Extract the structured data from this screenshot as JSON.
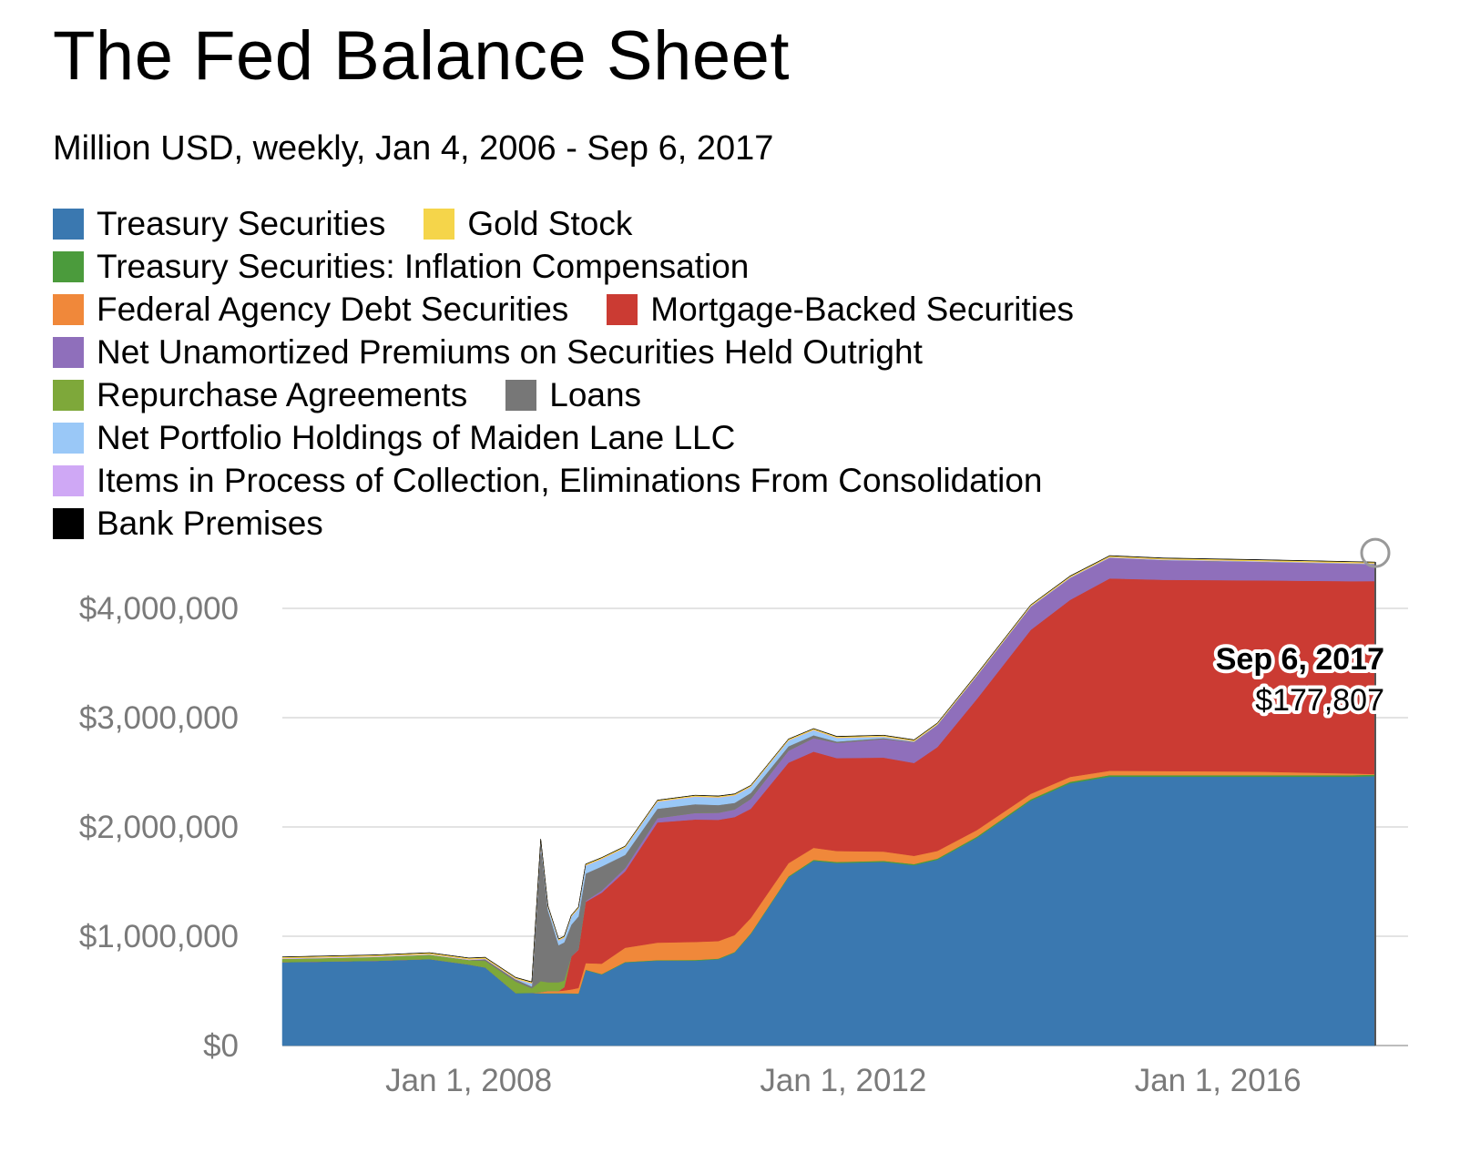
{
  "title": "The Fed Balance Sheet",
  "subtitle": "Million USD, weekly, Jan 4, 2006 - Sep 6, 2017",
  "legend_rows": [
    [
      {
        "label": "Treasury Securities",
        "color": "#3a78b0"
      },
      {
        "label": "Gold Stock",
        "color": "#f5d54a"
      }
    ],
    [
      {
        "label": "Treasury Securities: Inflation Compensation",
        "color": "#4b9b3c"
      }
    ],
    [
      {
        "label": "Federal Agency Debt Securities",
        "color": "#f0883a"
      },
      {
        "label": "Mortgage-Backed Securities",
        "color": "#cb3b33"
      }
    ],
    [
      {
        "label": "Net Unamortized Premiums on Securities Held Outright",
        "color": "#8f6fbb"
      }
    ],
    [
      {
        "label": "Repurchase Agreements",
        "color": "#7ea83a"
      },
      {
        "label": "Loans",
        "color": "#777777"
      }
    ],
    [
      {
        "label": "Net Portfolio Holdings of Maiden Lane LLC",
        "color": "#9ac8f7"
      }
    ],
    [
      {
        "label": "Items in Process of Collection, Eliminations From Consolidation",
        "color": "#cfa8f5"
      }
    ],
    [
      {
        "label": "Bank Premises",
        "color": "#000000"
      }
    ]
  ],
  "tooltip": {
    "date": "Sep 6, 2017",
    "value": "$177,807"
  },
  "chart_data": {
    "type": "area",
    "stacked": true,
    "x_start": "2006-01-04",
    "x_end": "2017-09-06",
    "x_ticks": [
      {
        "date": "2008-01-01",
        "label": "Jan 1, 2008"
      },
      {
        "date": "2012-01-01",
        "label": "Jan 1, 2012"
      },
      {
        "date": "2016-01-01",
        "label": "Jan 1, 2016"
      }
    ],
    "y_ticks": [
      {
        "value": 0,
        "label": "$0"
      },
      {
        "value": 1000000,
        "label": "$1,000,000"
      },
      {
        "value": 2000000,
        "label": "$2,000,000"
      },
      {
        "value": 3000000,
        "label": "$3,000,000"
      },
      {
        "value": 4000000,
        "label": "$4,000,000"
      }
    ],
    "ylim": [
      0,
      4400000
    ],
    "grid": true,
    "x": [
      "2006-01-04",
      "2007-01-03",
      "2007-08-01",
      "2008-01-02",
      "2008-03-05",
      "2008-07-02",
      "2008-09-03",
      "2008-10-08",
      "2008-11-05",
      "2008-12-17",
      "2009-01-07",
      "2009-02-04",
      "2009-03-04",
      "2009-04-01",
      "2009-06-03",
      "2009-09-02",
      "2010-01-06",
      "2010-06-02",
      "2010-09-01",
      "2010-11-03",
      "2011-01-05",
      "2011-06-01",
      "2011-09-07",
      "2011-12-07",
      "2012-06-06",
      "2012-10-03",
      "2013-01-02",
      "2013-06-05",
      "2014-01-01",
      "2014-06-04",
      "2014-11-05",
      "2015-06-03",
      "2016-06-01",
      "2017-06-07",
      "2017-09-06"
    ],
    "series": [
      {
        "name": "Treasury Securities",
        "color": "#3a78b0",
        "values": [
          762000,
          775000,
          790000,
          740000,
          713000,
          478000,
          480000,
          476000,
          476000,
          476000,
          476000,
          475000,
          474000,
          690000,
          650000,
          760000,
          777000,
          777000,
          790000,
          850000,
          1020000,
          1540000,
          1690000,
          1670000,
          1680000,
          1650000,
          1700000,
          1900000,
          2240000,
          2400000,
          2460000,
          2460000,
          2460000,
          2460000,
          2465000
        ]
      },
      {
        "name": "Treasury Securities: Inflation Compensation",
        "color": "#4b9b3c",
        "values": [
          1000,
          1000,
          2000,
          2000,
          2000,
          3000,
          3000,
          3000,
          3000,
          3000,
          3000,
          3000,
          3000,
          4000,
          4000,
          5000,
          5000,
          6000,
          6000,
          6000,
          7000,
          8000,
          9000,
          10000,
          10000,
          11000,
          11000,
          12000,
          13000,
          13000,
          14000,
          14000,
          14000,
          14000,
          14000
        ]
      },
      {
        "name": "Federal Agency Debt Securities",
        "color": "#f0883a",
        "values": [
          0,
          0,
          0,
          0,
          0,
          0,
          0,
          10000,
          20000,
          20000,
          25000,
          35000,
          50000,
          60000,
          95000,
          130000,
          160000,
          165000,
          160000,
          155000,
          140000,
          120000,
          110000,
          100000,
          85000,
          75000,
          70000,
          60000,
          50000,
          45000,
          40000,
          38000,
          33000,
          15000,
          5000
        ]
      },
      {
        "name": "Mortgage-Backed Securities",
        "color": "#cb3b33",
        "values": [
          0,
          0,
          0,
          0,
          0,
          0,
          0,
          0,
          0,
          0,
          30000,
          300000,
          350000,
          560000,
          650000,
          700000,
          1100000,
          1120000,
          1110000,
          1080000,
          1000000,
          920000,
          880000,
          850000,
          860000,
          850000,
          950000,
          1200000,
          1500000,
          1620000,
          1760000,
          1750000,
          1750000,
          1760000,
          1766000
        ]
      },
      {
        "name": "Net Unamortized Premiums on Securities Held Outright",
        "color": "#8f6fbb",
        "values": [
          0,
          0,
          0,
          0,
          0,
          0,
          0,
          0,
          0,
          0,
          0,
          2000,
          5000,
          10000,
          20000,
          30000,
          40000,
          60000,
          65000,
          70000,
          90000,
          110000,
          125000,
          140000,
          170000,
          190000,
          200000,
          210000,
          210000,
          200000,
          190000,
          180000,
          170000,
          160000,
          155000
        ]
      },
      {
        "name": "Repurchase Agreements",
        "color": "#7ea83a",
        "values": [
          30000,
          35000,
          40000,
          40000,
          60000,
          105000,
          40000,
          100000,
          80000,
          80000,
          60000,
          0,
          0,
          0,
          0,
          0,
          0,
          0,
          0,
          0,
          0,
          0,
          0,
          0,
          0,
          0,
          0,
          0,
          0,
          0,
          0,
          0,
          0,
          0,
          0
        ]
      },
      {
        "name": "Loans",
        "color": "#777777",
        "values": [
          0,
          0,
          0,
          2000,
          15000,
          20000,
          18000,
          1260000,
          660000,
          340000,
          350000,
          290000,
          300000,
          250000,
          220000,
          120000,
          85000,
          80000,
          70000,
          60000,
          55000,
          40000,
          25000,
          12000,
          8000,
          3000,
          2000,
          1000,
          1000,
          500,
          300,
          500,
          500,
          500,
          500
        ]
      },
      {
        "name": "Net Portfolio Holdings of Maiden Lane LLC",
        "color": "#9ac8f7",
        "values": [
          0,
          0,
          0,
          0,
          0,
          0,
          25000,
          25000,
          25000,
          40000,
          40000,
          70000,
          70000,
          70000,
          65000,
          63000,
          62000,
          66000,
          66000,
          65000,
          52000,
          50000,
          45000,
          30000,
          10000,
          2000,
          2000,
          1500,
          1700,
          1700,
          1700,
          1800,
          1800,
          1800,
          1800
        ]
      },
      {
        "name": "Items in Process of Collection, Eliminations From Consolidation",
        "color": "#cfa8f5",
        "values": [
          6000,
          6000,
          5000,
          5000,
          5000,
          5000,
          4000,
          4000,
          4000,
          4000,
          4000,
          4000,
          4000,
          4000,
          4000,
          4000,
          4000,
          4000,
          4000,
          4000,
          4000,
          4000,
          4000,
          4000,
          4000,
          4000,
          4000,
          4000,
          4000,
          4000,
          4000,
          4000,
          4000,
          4000,
          4000
        ]
      },
      {
        "name": "Gold Stock",
        "color": "#f5d54a",
        "values": [
          11000,
          11000,
          11000,
          11000,
          11000,
          11000,
          11000,
          11000,
          11000,
          11000,
          11000,
          11000,
          11000,
          11000,
          11000,
          11000,
          11000,
          11000,
          11000,
          11000,
          11000,
          11000,
          11000,
          11000,
          11000,
          11000,
          11000,
          11000,
          11000,
          11000,
          11000,
          11000,
          11000,
          11000,
          11000
        ]
      },
      {
        "name": "Bank Premises",
        "color": "#000000",
        "values": [
          2000,
          2000,
          2000,
          2000,
          2000,
          2000,
          2000,
          2000,
          2000,
          2000,
          2000,
          2000,
          2000,
          2000,
          2000,
          2000,
          2000,
          2000,
          2000,
          2000,
          2000,
          2000,
          2000,
          2000,
          2000,
          2000,
          2000,
          2000,
          2000,
          2000,
          2000,
          2000,
          2000,
          2000,
          2000
        ]
      }
    ]
  }
}
